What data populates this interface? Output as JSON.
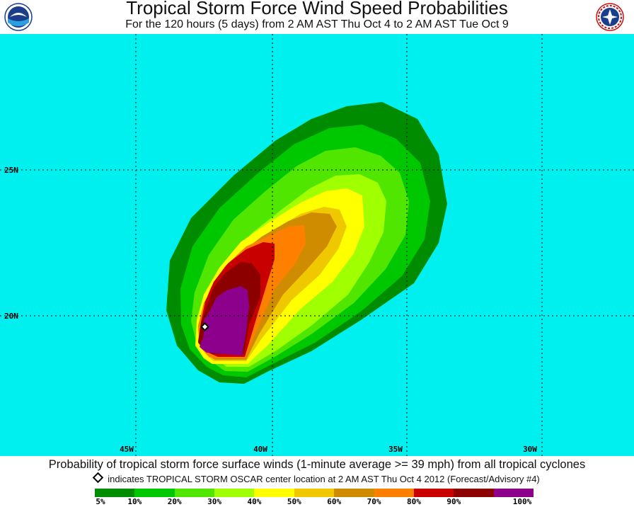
{
  "header": {
    "title": "Tropical Storm Force Wind Speed Probabilities",
    "subtitle": "For the 120 hours (5 days) from 2 AM AST Thu Oct 4 to 2 AM AST Tue Oct 9"
  },
  "map": {
    "background_color": "#00f0f0",
    "lat_labels": [
      "25N",
      "20N"
    ],
    "lon_labels": [
      "45W",
      "40W",
      "35W",
      "30W"
    ],
    "storm_center_icon": "diamond-icon"
  },
  "footer": {
    "caption": "Probability of tropical storm force surface winds (1-minute average >= 39 mph) from all tropical cyclones",
    "note": "indicates TROPICAL STORM OSCAR center location at 2 AM AST Thu Oct 4 2012 (Forecast/Advisory #4)",
    "scale_colors": [
      "#008c00",
      "#00c800",
      "#50e600",
      "#a0ff00",
      "#ffff00",
      "#f0c800",
      "#d08c00",
      "#ff8000",
      "#c80000",
      "#8c0000",
      "#8c008c"
    ],
    "scale_labels": [
      "5%",
      "10%",
      "20%",
      "30%",
      "40%",
      "50%",
      "60%",
      "70%",
      "80%",
      "90%",
      "100%"
    ]
  }
}
